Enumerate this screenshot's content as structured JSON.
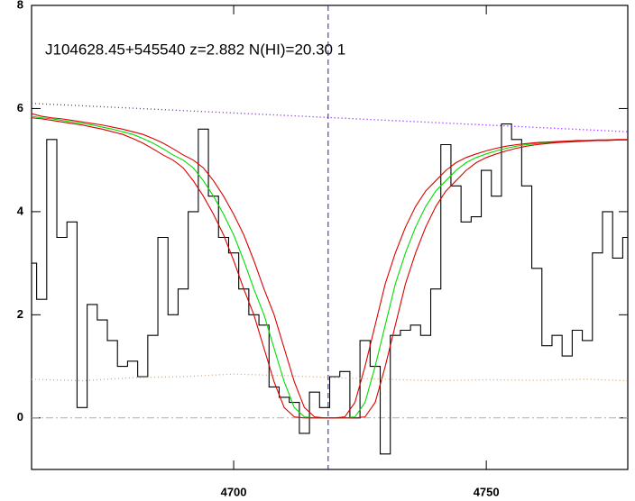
{
  "chart_data": {
    "type": "line",
    "title": "J104628.45+545540 z=2.882 N(HI)=20.30 1",
    "x": [
      4660,
      4662,
      4664,
      4666,
      4668,
      4670,
      4672,
      4674,
      4676,
      4678,
      4680,
      4682,
      4684,
      4686,
      4688,
      4690,
      4692,
      4694,
      4696,
      4698,
      4700,
      4702,
      4704,
      4706,
      4708,
      4710,
      4712,
      4714,
      4716,
      4718,
      4720,
      4722,
      4724,
      4726,
      4728,
      4730,
      4732,
      4734,
      4736,
      4738,
      4740,
      4742,
      4744,
      4746,
      4748,
      4750,
      4752,
      4754,
      4756,
      4758,
      4760,
      4762,
      4764,
      4766,
      4768,
      4770,
      4772,
      4774,
      4776,
      4778
    ],
    "series": [
      {
        "color": "#000000",
        "style": "step",
        "values": [
          3.0,
          2.3,
          5.4,
          3.5,
          3.8,
          0.2,
          2.2,
          1.9,
          1.5,
          1.0,
          1.1,
          0.8,
          1.6,
          3.5,
          2.0,
          2.5,
          4.0,
          5.6,
          4.3,
          3.5,
          3.2,
          2.5,
          2.0,
          1.8,
          0.6,
          0.4,
          0.3,
          -0.3,
          0.5,
          0.2,
          0.8,
          0.9,
          0.0,
          1.5,
          1.0,
          -0.7,
          1.6,
          1.7,
          1.8,
          1.6,
          2.5,
          5.3,
          4.5,
          3.8,
          3.9,
          4.8,
          4.3,
          5.7,
          5.4,
          4.5,
          2.9,
          1.4,
          1.6,
          1.2,
          1.7,
          1.5,
          3.2,
          4.0,
          3.1,
          3.5
        ]
      },
      {
        "color": "#00dd00",
        "style": "solid",
        "values": [
          5.85,
          5.82,
          5.8,
          5.77,
          5.74,
          5.71,
          5.68,
          5.64,
          5.6,
          5.55,
          5.5,
          5.42,
          5.33,
          5.22,
          5.1,
          5.0,
          4.85,
          4.6,
          4.3,
          3.95,
          3.55,
          3.05,
          2.5,
          2.0,
          1.35,
          0.7,
          0.2,
          0.02,
          0,
          0,
          0,
          0,
          0.02,
          0.3,
          1.0,
          1.8,
          2.6,
          3.2,
          3.7,
          4.1,
          4.4,
          4.6,
          4.8,
          4.95,
          5.05,
          5.12,
          5.18,
          5.23,
          5.27,
          5.3,
          5.32,
          5.34,
          5.35,
          5.36,
          5.37,
          5.38,
          5.38,
          5.39,
          5.39,
          5.4
        ]
      },
      {
        "color": "#dd0000",
        "style": "solid",
        "values": [
          5.9,
          5.85,
          5.82,
          5.8,
          5.77,
          5.74,
          5.71,
          5.68,
          5.64,
          5.6,
          5.55,
          5.5,
          5.42,
          5.33,
          5.22,
          5.1,
          5.0,
          4.85,
          4.6,
          4.3,
          3.95,
          3.55,
          3.05,
          2.5,
          2.0,
          1.35,
          0.7,
          0.2,
          0.02,
          0,
          0,
          0.02,
          0.3,
          1.0,
          1.8,
          2.6,
          3.2,
          3.7,
          4.1,
          4.4,
          4.6,
          4.8,
          4.95,
          5.05,
          5.12,
          5.18,
          5.23,
          5.27,
          5.3,
          5.32,
          5.34,
          5.35,
          5.36,
          5.37,
          5.38,
          5.38,
          5.39,
          5.39,
          5.4,
          5.4
        ]
      },
      {
        "color": "#dd0000",
        "style": "solid",
        "values": [
          5.82,
          5.8,
          5.77,
          5.74,
          5.71,
          5.68,
          5.64,
          5.6,
          5.55,
          5.5,
          5.42,
          5.33,
          5.22,
          5.1,
          5.0,
          4.85,
          4.6,
          4.3,
          3.95,
          3.55,
          3.05,
          2.5,
          2.0,
          1.35,
          0.7,
          0.2,
          0.02,
          0,
          0,
          0,
          0,
          0,
          0,
          0.02,
          0.3,
          1.0,
          1.8,
          2.6,
          3.2,
          3.7,
          4.1,
          4.4,
          4.6,
          4.8,
          4.95,
          5.05,
          5.12,
          5.18,
          5.23,
          5.27,
          5.3,
          5.32,
          5.34,
          5.35,
          5.36,
          5.37,
          5.38,
          5.38,
          5.39,
          5.39
        ]
      },
      {
        "color": "#8800ff",
        "style": "dotted",
        "x": [
          4660,
          4778
        ],
        "values": [
          6.1,
          5.55
        ]
      },
      {
        "color": "#ff9933",
        "style": "dotted",
        "x": [
          4660,
          4670,
          4680,
          4690,
          4700,
          4710,
          4720,
          4730,
          4740,
          4750,
          4760,
          4770,
          4778
        ],
        "values": [
          0.75,
          0.72,
          0.78,
          0.8,
          0.85,
          0.82,
          0.78,
          0.75,
          0.72,
          0.74,
          0.73,
          0.75,
          0.72
        ]
      }
    ],
    "zero_line": 0,
    "zero_color": "#aaaaaa",
    "vline": 4718.7,
    "vline_color": "#2222aa",
    "xlim": [
      4660,
      4778
    ],
    "xticks": [
      4700,
      4750
    ],
    "ylim": [
      -1,
      8
    ],
    "yticks": [
      0,
      2,
      4,
      6,
      8
    ]
  }
}
